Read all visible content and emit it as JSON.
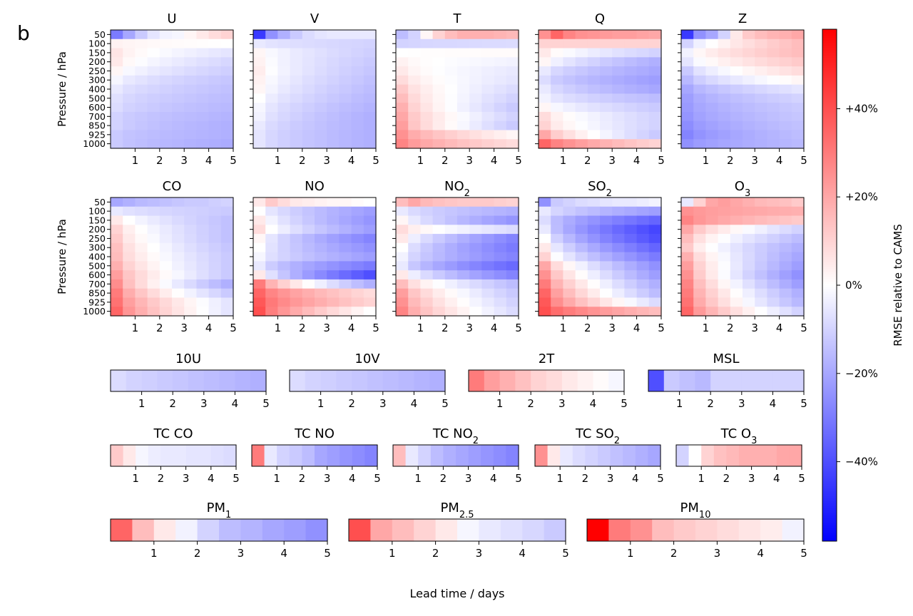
{
  "figure": {
    "panel_label": "b",
    "xlabel": "Lead time / days",
    "ylabel": "Pressure / hPa",
    "colorbar": {
      "label": "RMSE relative to CAMS",
      "ticks": [
        "+40%",
        "+20%",
        "0%",
        "−20%",
        "−40%"
      ],
      "tick_values": [
        40,
        20,
        0,
        -20,
        -40
      ],
      "range": [
        -58,
        58
      ],
      "colors": {
        "low": "#0000ff",
        "mid": "#ffffff",
        "high": "#ff0000"
      }
    }
  },
  "chart_data": {
    "type": "heatmap",
    "units": "% RMSE relative to CAMS",
    "x_ticks": [
      "1",
      "2",
      "3",
      "4",
      "5"
    ],
    "lead_time_steps_per_day": 2,
    "pressure_levels": [
      "50",
      "100",
      "150",
      "200",
      "250",
      "300",
      "400",
      "500",
      "600",
      "700",
      "850",
      "925",
      "1000"
    ],
    "atmospheric": [
      {
        "title": "U",
        "sub": "",
        "first_row": [
          -30,
          -20,
          -12,
          -6,
          -3,
          -2,
          2,
          5,
          8,
          10
        ],
        "rest_start": [
          3,
          6,
          5,
          2,
          -2,
          -5,
          -7,
          -8,
          -10,
          -10,
          -12,
          -12
        ],
        "rest_end": [
          0,
          -6,
          -9,
          -11,
          -13,
          -14,
          -15,
          -16,
          -17,
          -18,
          -18,
          -19
        ]
      },
      {
        "title": "V",
        "sub": "",
        "first_row": [
          -45,
          -25,
          -18,
          -12,
          -8,
          -6,
          -5,
          -5,
          -5,
          -5
        ],
        "rest_start": [
          -5,
          2,
          3,
          4,
          3,
          2,
          0,
          -2,
          -3,
          -5,
          -6,
          -6
        ],
        "rest_end": [
          -10,
          -11,
          -12,
          -13,
          -14,
          -15,
          -16,
          -17,
          -18,
          -18,
          -18,
          -18
        ]
      },
      {
        "title": "T",
        "sub": "",
        "first_row": [
          -15,
          -10,
          2,
          10,
          15,
          18,
          18,
          18,
          17,
          16
        ],
        "rest_start": [
          -10,
          0,
          3,
          5,
          8,
          12,
          15,
          18,
          20,
          22,
          25,
          28
        ],
        "rest_end": [
          -8,
          1,
          -3,
          -5,
          -6,
          -8,
          -10,
          -12,
          -10,
          -12,
          2,
          8
        ]
      },
      {
        "title": "Q",
        "sub": "",
        "first_row": [
          25,
          35,
          28,
          25,
          24,
          23,
          22,
          22,
          21,
          20
        ],
        "rest_start": [
          10,
          5,
          2,
          -5,
          -8,
          -5,
          -3,
          2,
          8,
          10,
          20,
          35
        ],
        "rest_end": [
          10,
          -10,
          -18,
          -20,
          -22,
          -20,
          -15,
          -12,
          -10,
          -10,
          -12,
          10
        ]
      },
      {
        "title": "Z",
        "sub": "",
        "first_row": [
          -45,
          -25,
          -20,
          -10,
          5,
          12,
          15,
          17,
          18,
          20
        ],
        "rest_start": [
          -10,
          -3,
          -6,
          -12,
          -16,
          -20,
          -22,
          -23,
          -24,
          -26,
          -28,
          -25
        ],
        "rest_end": [
          15,
          15,
          12,
          8,
          2,
          -6,
          -10,
          -12,
          -13,
          -14,
          -15,
          -16
        ]
      },
      {
        "title": "CO",
        "sub": "",
        "first_row": [
          -20,
          -18,
          -16,
          -15,
          -14,
          -13,
          -12,
          -12,
          -11,
          -10
        ],
        "rest_start": [
          -5,
          5,
          10,
          12,
          14,
          15,
          18,
          22,
          26,
          30,
          32,
          35
        ],
        "rest_end": [
          -12,
          -14,
          -14,
          -14,
          -13,
          -12,
          -12,
          -12,
          -18,
          -12,
          -6,
          -6
        ]
      },
      {
        "title": "NO",
        "sub": "",
        "first_row": [
          5,
          12,
          8,
          5,
          4,
          3,
          2,
          2,
          1,
          0
        ],
        "rest_start": [
          0,
          5,
          8,
          2,
          0,
          -2,
          -5,
          5,
          30,
          35,
          38,
          40
        ],
        "rest_end": [
          -22,
          -24,
          -22,
          -28,
          -25,
          -22,
          -30,
          -40,
          -18,
          8,
          10,
          0
        ]
      },
      {
        "title": "NO",
        "sub": "2",
        "first_row": [
          15,
          20,
          16,
          14,
          13,
          12,
          12,
          12,
          11,
          10
        ],
        "rest_start": [
          -5,
          2,
          8,
          5,
          0,
          -3,
          -5,
          5,
          15,
          22,
          25,
          28
        ],
        "rest_end": [
          -18,
          -24,
          -8,
          -28,
          -30,
          -28,
          -34,
          -28,
          -15,
          -12,
          -10,
          -8
        ]
      },
      {
        "title": "SO",
        "sub": "2",
        "first_row": [
          -25,
          -12,
          -10,
          -8,
          -7,
          -6,
          -5,
          -5,
          -4,
          -3
        ],
        "rest_start": [
          -5,
          -8,
          -5,
          0,
          5,
          10,
          20,
          25,
          30,
          35,
          38,
          40
        ],
        "rest_end": [
          -22,
          -35,
          -42,
          -40,
          -35,
          -30,
          -25,
          -22,
          -18,
          -15,
          -8,
          15
        ]
      },
      {
        "title": "O",
        "sub": "3",
        "first_row": [
          -5,
          10,
          20,
          22,
          20,
          18,
          16,
          15,
          14,
          12
        ],
        "rest_start": [
          25,
          28,
          20,
          15,
          12,
          18,
          22,
          25,
          28,
          30,
          32,
          35
        ],
        "rest_end": [
          18,
          12,
          -10,
          -15,
          -18,
          -20,
          -22,
          -25,
          -22,
          -18,
          -16,
          -10
        ]
      }
    ],
    "surface": [
      {
        "title": "10U",
        "sub": "",
        "values": [
          -8,
          -10,
          -11,
          -12,
          -13,
          -14,
          -15,
          -16,
          -17,
          -18
        ]
      },
      {
        "title": "10V",
        "sub": "",
        "values": [
          -8,
          -10,
          -11,
          -12,
          -13,
          -14,
          -15,
          -16,
          -17,
          -18
        ]
      },
      {
        "title": "2T",
        "sub": "",
        "values": [
          30,
          22,
          18,
          14,
          10,
          8,
          5,
          3,
          1,
          -2
        ]
      },
      {
        "title": "MSL",
        "sub": "",
        "values": [
          -40,
          -12,
          -14,
          -16,
          -10,
          -10,
          -10,
          -10,
          -10,
          -10
        ]
      }
    ],
    "total_column": [
      {
        "title": "TC CO",
        "sub": "",
        "values": [
          12,
          5,
          -2,
          -4,
          -5,
          -5,
          -6,
          -6,
          -7,
          -8
        ]
      },
      {
        "title": "TC NO",
        "sub": "",
        "values": [
          30,
          -5,
          -10,
          -12,
          -15,
          -20,
          -22,
          -24,
          -26,
          -28
        ]
      },
      {
        "title": "TC NO",
        "sub": "2",
        "values": [
          15,
          -5,
          -10,
          -15,
          -18,
          -20,
          -22,
          -24,
          -26,
          -28
        ]
      },
      {
        "title": "TC SO",
        "sub": "2",
        "values": [
          25,
          5,
          -5,
          -8,
          -10,
          -12,
          -14,
          -16,
          -18,
          -20
        ]
      },
      {
        "title": "TC O",
        "sub": "3",
        "values": [
          -10,
          0,
          10,
          14,
          16,
          18,
          18,
          18,
          20,
          20
        ]
      }
    ],
    "particulate": [
      {
        "title": "PM",
        "sub": "1",
        "values": [
          35,
          15,
          5,
          -3,
          -10,
          -15,
          -17,
          -20,
          -22,
          -25
        ]
      },
      {
        "title": "PM",
        "sub": "2.5",
        "values": [
          40,
          20,
          15,
          10,
          5,
          -2,
          -5,
          -7,
          -9,
          -12
        ]
      },
      {
        "title": "PM",
        "sub": "10",
        "values": [
          58,
          30,
          25,
          15,
          12,
          10,
          8,
          6,
          4,
          -3
        ]
      }
    ]
  }
}
